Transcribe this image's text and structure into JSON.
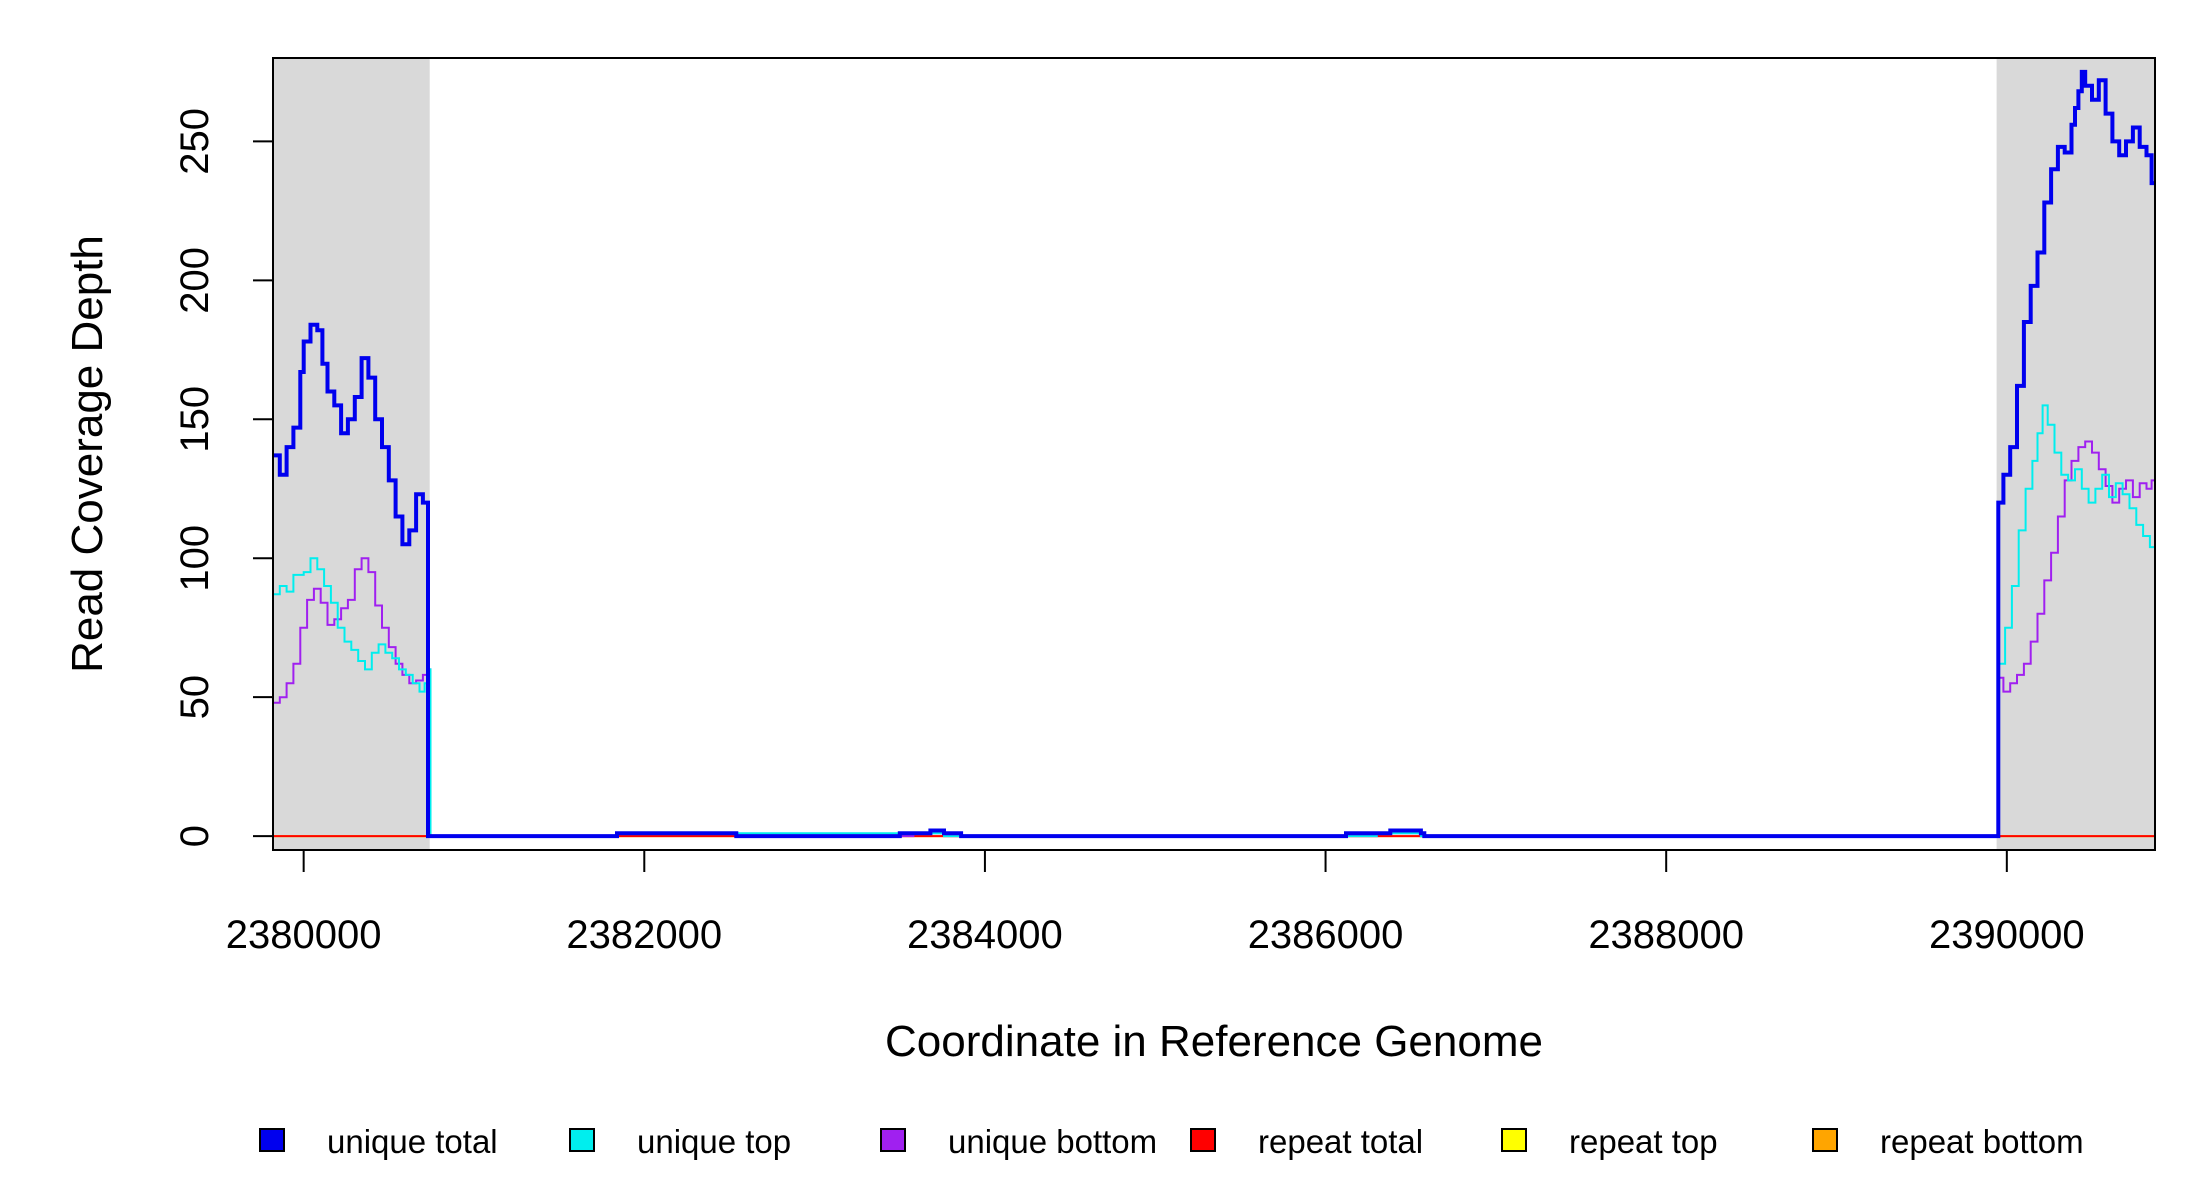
{
  "chart_data": {
    "type": "line",
    "xlabel": "Coordinate in Reference Genome",
    "ylabel": "Read Coverage Depth",
    "xlim": [
      2379820,
      2390870
    ],
    "ylim": [
      -5,
      280
    ],
    "x_ticks": [
      2380000,
      2382000,
      2384000,
      2386000,
      2388000,
      2390000
    ],
    "x_tick_labels": [
      "2380000",
      "2382000",
      "2384000",
      "2386000",
      "2388000",
      "2390000"
    ],
    "y_ticks": [
      0,
      50,
      100,
      150,
      200,
      250
    ],
    "y_tick_labels": [
      "0",
      "50",
      "100",
      "150",
      "200",
      "250"
    ],
    "shaded_regions": [
      [
        2379820,
        2380740
      ],
      [
        2389940,
        2390870
      ]
    ],
    "shade_color": "#d9d9d9",
    "legend_position": "bottom",
    "series": [
      {
        "name": "unique total",
        "color": "#0000ee",
        "line_width": 4,
        "x": [
          2379820,
          2379860,
          2379900,
          2379940,
          2379980,
          2380000,
          2380040,
          2380080,
          2380110,
          2380140,
          2380180,
          2380220,
          2380260,
          2380300,
          2380340,
          2380380,
          2380420,
          2380460,
          2380500,
          2380540,
          2380580,
          2380620,
          2380660,
          2380700,
          2380730,
          2380745,
          2380760,
          2381800,
          2381840,
          2382000,
          2382300,
          2382320,
          2382540,
          2382560,
          2383500,
          2383520,
          2383580,
          2383680,
          2383760,
          2383860,
          2383880,
          2386100,
          2386120,
          2386300,
          2386380,
          2386560,
          2386580,
          2389930,
          2389950,
          2389980,
          2390020,
          2390060,
          2390100,
          2390140,
          2390180,
          2390220,
          2390260,
          2390300,
          2390340,
          2390380,
          2390400,
          2390420,
          2390440,
          2390460,
          2390500,
          2390540,
          2390580,
          2390620,
          2390660,
          2390700,
          2390740,
          2390780,
          2390820,
          2390850,
          2390870
        ],
        "y": [
          137,
          130,
          140,
          147,
          167,
          178,
          184,
          182,
          170,
          160,
          155,
          145,
          150,
          158,
          172,
          165,
          150,
          140,
          128,
          115,
          105,
          110,
          123,
          120,
          0,
          0,
          0,
          0,
          1,
          1,
          1,
          1,
          0,
          0,
          1,
          1,
          1,
          2,
          1,
          0,
          0,
          0,
          1,
          1,
          2,
          1,
          0,
          0,
          120,
          130,
          140,
          162,
          185,
          198,
          210,
          228,
          240,
          248,
          246,
          256,
          262,
          268,
          275,
          270,
          265,
          272,
          260,
          250,
          245,
          250,
          255,
          248,
          245,
          235,
          235
        ]
      },
      {
        "name": "unique top",
        "color": "#00eeee",
        "line_width": 2,
        "x": [
          2379820,
          2379860,
          2379900,
          2379940,
          2380000,
          2380040,
          2380080,
          2380120,
          2380160,
          2380200,
          2380240,
          2380280,
          2380320,
          2380360,
          2380400,
          2380440,
          2380480,
          2380520,
          2380560,
          2380600,
          2380640,
          2380680,
          2380710,
          2380730,
          2380745,
          2380760,
          2381800,
          2381840,
          2382000,
          2383500,
          2383580,
          2383680,
          2383760,
          2386100,
          2386300,
          2386400,
          2386560,
          2389930,
          2389950,
          2389990,
          2390030,
          2390070,
          2390110,
          2390150,
          2390180,
          2390210,
          2390240,
          2390280,
          2390320,
          2390360,
          2390400,
          2390440,
          2390480,
          2390520,
          2390560,
          2390600,
          2390640,
          2390680,
          2390720,
          2390760,
          2390800,
          2390840,
          2390870
        ],
        "y": [
          87,
          90,
          88,
          94,
          95,
          100,
          96,
          90,
          84,
          75,
          70,
          67,
          63,
          60,
          66,
          69,
          66,
          64,
          60,
          58,
          55,
          52,
          55,
          60,
          0,
          0,
          0,
          1,
          1,
          1,
          1,
          1,
          0,
          0,
          1,
          1,
          0,
          0,
          62,
          75,
          90,
          110,
          125,
          135,
          145,
          155,
          148,
          138,
          130,
          128,
          132,
          125,
          120,
          125,
          130,
          122,
          127,
          123,
          118,
          112,
          108,
          104,
          103
        ]
      },
      {
        "name": "unique bottom",
        "color": "#a020f0",
        "line_width": 2,
        "x": [
          2379820,
          2379860,
          2379900,
          2379940,
          2379980,
          2380020,
          2380060,
          2380100,
          2380140,
          2380180,
          2380220,
          2380260,
          2380300,
          2380340,
          2380380,
          2380420,
          2380460,
          2380500,
          2380540,
          2380580,
          2380620,
          2380660,
          2380700,
          2380730,
          2380745,
          2380760,
          2381800,
          2381840,
          2382000,
          2382300,
          2382540,
          2383500,
          2383580,
          2383680,
          2383760,
          2386100,
          2386300,
          2386400,
          2386560,
          2389930,
          2389950,
          2389980,
          2390020,
          2390060,
          2390100,
          2390140,
          2390180,
          2390220,
          2390260,
          2390300,
          2390340,
          2390380,
          2390420,
          2390460,
          2390500,
          2390540,
          2390580,
          2390620,
          2390660,
          2390700,
          2390740,
          2390780,
          2390820,
          2390850,
          2390870
        ],
        "y": [
          48,
          50,
          55,
          62,
          75,
          85,
          89,
          84,
          76,
          78,
          82,
          85,
          96,
          100,
          95,
          83,
          75,
          68,
          62,
          58,
          55,
          56,
          58,
          60,
          0,
          0,
          0,
          1,
          1,
          1,
          0,
          0,
          1,
          1,
          0,
          0,
          1,
          1,
          0,
          0,
          57,
          52,
          55,
          58,
          62,
          70,
          80,
          92,
          102,
          115,
          128,
          135,
          140,
          142,
          138,
          132,
          126,
          120,
          125,
          128,
          122,
          127,
          125,
          128,
          130
        ]
      },
      {
        "name": "repeat total",
        "color": "#ff0000",
        "line_width": 2,
        "x": [
          2379820,
          2390870
        ],
        "y": [
          0,
          0
        ]
      },
      {
        "name": "repeat top",
        "color": "#ffff00",
        "line_width": 2,
        "x": [
          2379820,
          2390870
        ],
        "y": [
          0,
          0
        ]
      },
      {
        "name": "repeat bottom",
        "color": "#ffa500",
        "line_width": 2,
        "x": [
          2379820,
          2390870
        ],
        "y": [
          0,
          0
        ]
      }
    ]
  }
}
